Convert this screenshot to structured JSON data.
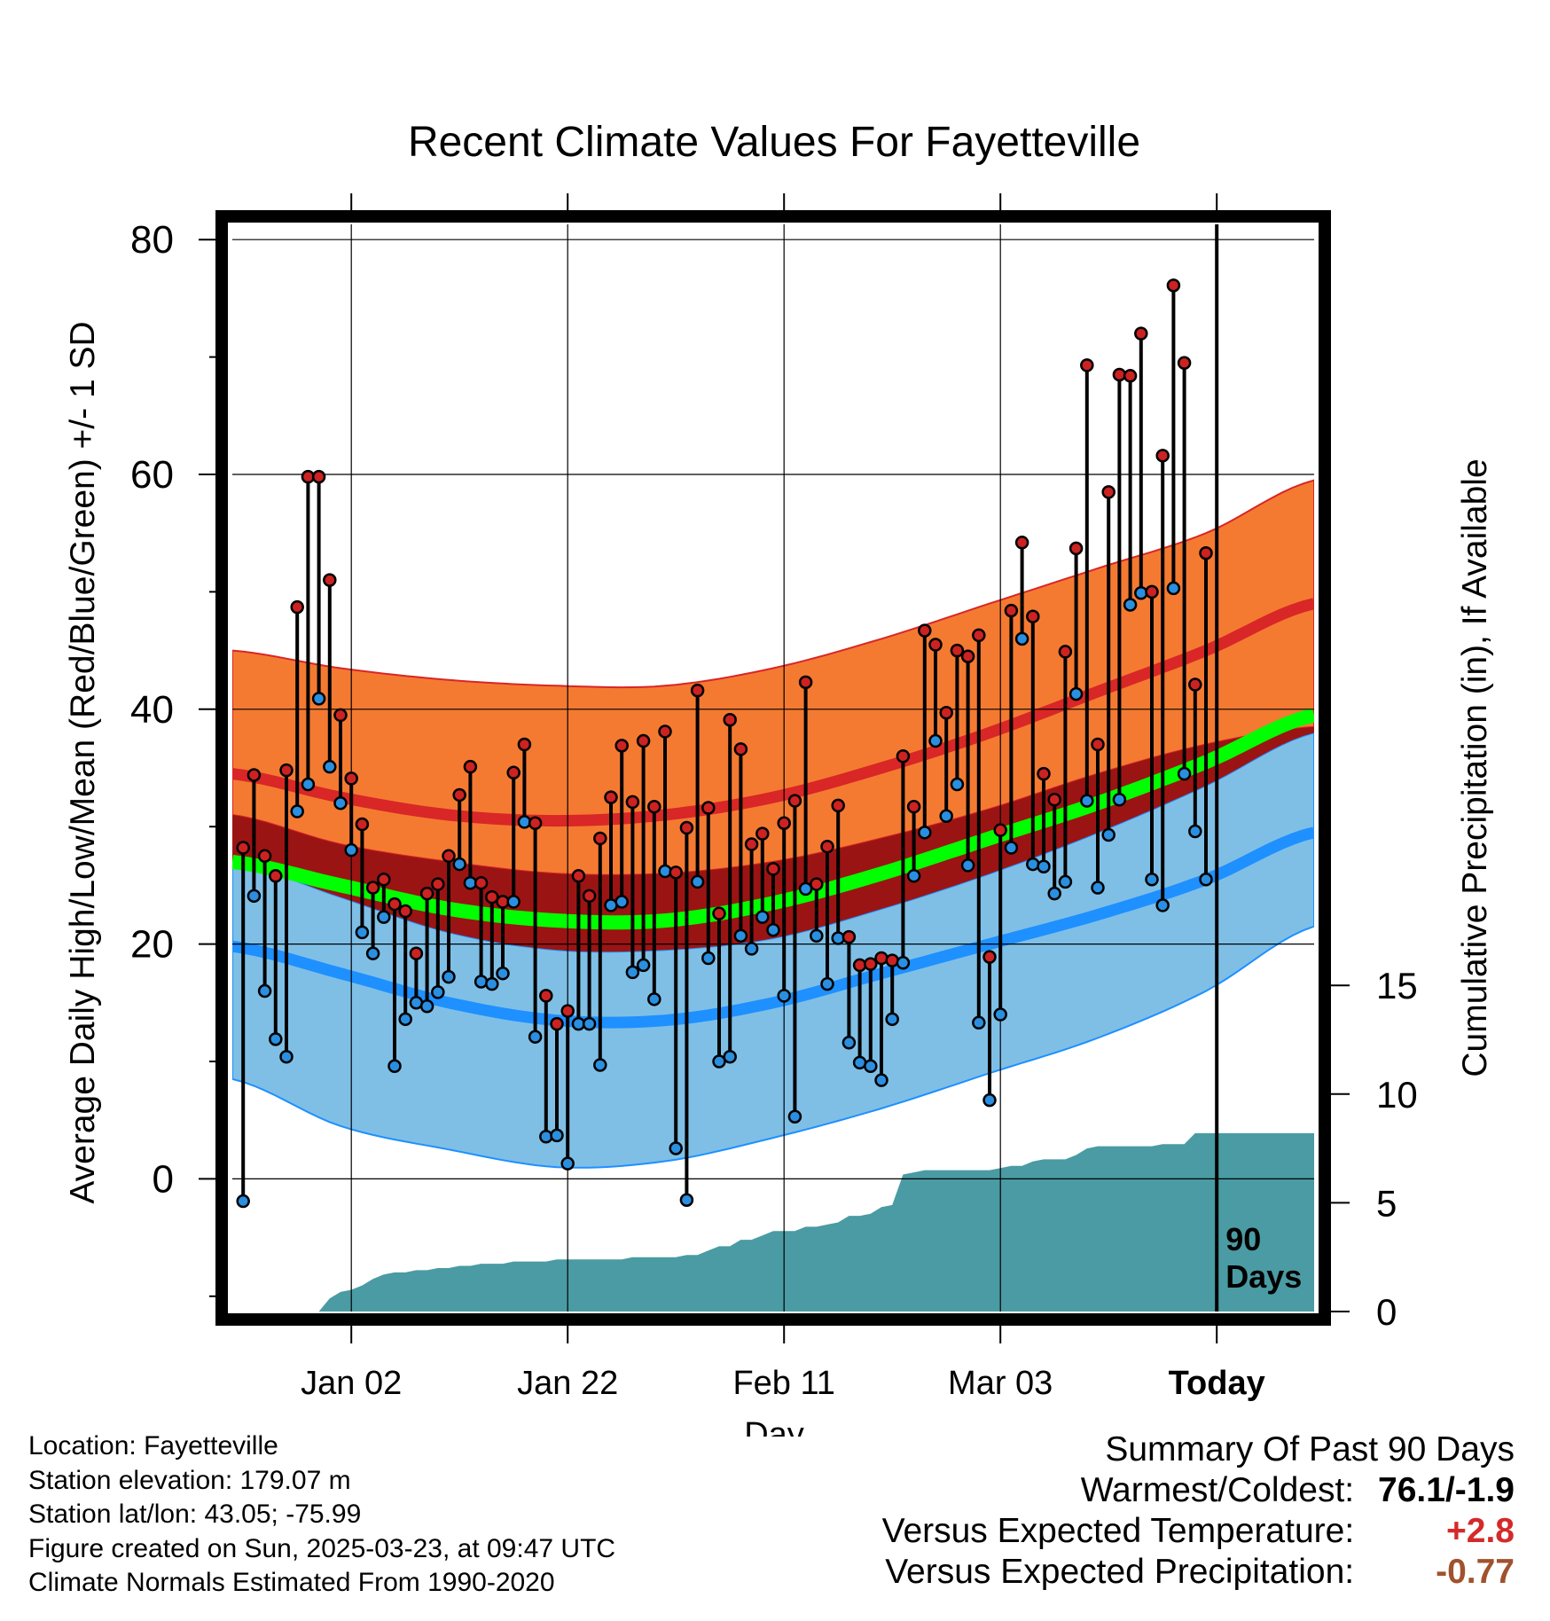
{
  "chart_data": {
    "type": "line",
    "title": "Recent Climate Values For Fayetteville",
    "xlabel": "Day",
    "ylabel": "Average Daily High/Low/Mean (Red/Blue/Green) +/- 1 SD",
    "y2label": "Cumulative Precipitation (in), If Available",
    "x_tick_labels": [
      "Jan 02",
      "Jan 22",
      "Feb 11",
      "Mar 03",
      "Today"
    ],
    "x_tick_days": [
      10,
      30,
      50,
      70,
      90
    ],
    "xlim": [
      -1,
      99
    ],
    "ylim": [
      -11.3,
      81.3
    ],
    "y_ticks": [
      0,
      20,
      40,
      60,
      80
    ],
    "y2_ticks": [
      0,
      5,
      10,
      15
    ],
    "y2lim": [
      0,
      50
    ],
    "grid": true,
    "today_label": "90 Days",
    "normals": {
      "days": [
        -1,
        9,
        19,
        29,
        39,
        49,
        59,
        69,
        79,
        89,
        99
      ],
      "high_mean": [
        34.5,
        32.5,
        31.0,
        30.5,
        31.0,
        32.5,
        35.0,
        38.0,
        41.5,
        45.0,
        49.0
      ],
      "high_upper": [
        45.0,
        43.5,
        42.5,
        42.0,
        42.0,
        43.5,
        46.0,
        49.0,
        52.0,
        55.0,
        59.5
      ],
      "high_lower": [
        31.0,
        28.5,
        27.0,
        26.0,
        26.0,
        27.0,
        29.0,
        31.5,
        34.5,
        37.0,
        38.5
      ],
      "low_mean": [
        19.8,
        17.5,
        15.0,
        13.5,
        13.5,
        15.0,
        17.5,
        20.0,
        22.5,
        25.5,
        29.5
      ],
      "low_upper": [
        27.0,
        24.0,
        21.0,
        19.5,
        19.5,
        20.5,
        23.0,
        26.0,
        29.5,
        33.5,
        38.0
      ],
      "low_lower": [
        8.5,
        4.5,
        2.5,
        1.0,
        1.5,
        3.5,
        6.0,
        9.0,
        12.0,
        16.0,
        21.5
      ],
      "mean_mean": [
        27.0,
        25.0,
        23.0,
        22.0,
        22.0,
        23.5,
        26.0,
        29.0,
        32.0,
        35.5,
        39.5
      ]
    },
    "series": [
      {
        "name": "High",
        "values": [
          28.2,
          34.4,
          27.5,
          25.8,
          34.8,
          48.7,
          59.8,
          59.8,
          51.0,
          39.5,
          34.1,
          30.2,
          24.8,
          25.5,
          23.4,
          22.8,
          19.2,
          24.3,
          25.1,
          27.5,
          32.7,
          35.1,
          25.2,
          24.0,
          23.6,
          34.6,
          37.0,
          30.3,
          15.6,
          13.2,
          14.3,
          25.8,
          24.1,
          29.0,
          32.5,
          36.9,
          32.1,
          37.3,
          31.7,
          38.1,
          26.1,
          29.9,
          41.6,
          31.6,
          22.6,
          39.1,
          36.6,
          28.5,
          29.4,
          26.4,
          30.3,
          32.2,
          42.3,
          25.1,
          28.3,
          31.8,
          20.6,
          18.2,
          18.3,
          18.8,
          18.6,
          36.0,
          31.7,
          46.7,
          45.5,
          39.7,
          45.0,
          44.5,
          46.3,
          18.9,
          29.7,
          48.4,
          54.2,
          47.9,
          34.5,
          32.3,
          44.9,
          53.7,
          69.3,
          37.0,
          58.5,
          68.5,
          68.4,
          72.0,
          50.0,
          61.6,
          76.1,
          69.5,
          42.1,
          53.3
        ]
      },
      {
        "name": "Low",
        "values": [
          -1.9,
          24.1,
          16.0,
          11.9,
          10.4,
          31.3,
          33.6,
          40.9,
          35.1,
          32.0,
          28.0,
          21.0,
          19.2,
          22.3,
          9.6,
          13.6,
          15.0,
          14.7,
          15.9,
          17.2,
          26.8,
          25.2,
          16.8,
          16.6,
          17.5,
          23.6,
          30.4,
          12.1,
          3.6,
          3.7,
          1.3,
          13.2,
          13.2,
          9.7,
          23.3,
          23.6,
          17.6,
          18.2,
          15.3,
          26.2,
          2.6,
          -1.8,
          25.3,
          18.8,
          10.0,
          10.4,
          20.7,
          19.6,
          22.3,
          21.2,
          15.6,
          5.3,
          24.7,
          20.7,
          16.6,
          20.5,
          11.6,
          9.9,
          9.6,
          8.4,
          13.6,
          18.4,
          25.8,
          29.5,
          37.3,
          30.9,
          33.6,
          26.7,
          13.3,
          6.7,
          14.0,
          28.2,
          46.0,
          26.8,
          26.6,
          24.3,
          25.3,
          41.3,
          32.2,
          24.8,
          29.3,
          32.3,
          48.9,
          49.9,
          25.5,
          23.3,
          50.3,
          34.5,
          29.6,
          25.5
        ]
      }
    ],
    "precip_cumulative": {
      "days": [
        7,
        8,
        9,
        10,
        11,
        12,
        13,
        14,
        15,
        16,
        17,
        18,
        19,
        20,
        21,
        22,
        23,
        24,
        25,
        26,
        27,
        28,
        29,
        30,
        31,
        32,
        33,
        34,
        35,
        36,
        37,
        38,
        39,
        40,
        41,
        42,
        43,
        44,
        45,
        46,
        47,
        48,
        49,
        50,
        51,
        52,
        53,
        54,
        55,
        56,
        57,
        58,
        59,
        60,
        61,
        62,
        63,
        64,
        65,
        66,
        67,
        68,
        69,
        70,
        71,
        72,
        73,
        74,
        75,
        76,
        77,
        78,
        79,
        80,
        81,
        82,
        83,
        84,
        85,
        86,
        87,
        88,
        89,
        90,
        99
      ],
      "values": [
        0.0,
        0.6,
        0.9,
        1.0,
        1.2,
        1.5,
        1.7,
        1.8,
        1.8,
        1.9,
        1.9,
        2.0,
        2.0,
        2.1,
        2.1,
        2.2,
        2.2,
        2.2,
        2.3,
        2.3,
        2.3,
        2.3,
        2.4,
        2.4,
        2.4,
        2.4,
        2.4,
        2.4,
        2.4,
        2.5,
        2.5,
        2.5,
        2.5,
        2.5,
        2.6,
        2.6,
        2.8,
        3.0,
        3.0,
        3.3,
        3.3,
        3.5,
        3.7,
        3.7,
        3.7,
        3.9,
        3.9,
        4.0,
        4.1,
        4.4,
        4.4,
        4.5,
        4.8,
        4.9,
        6.3,
        6.4,
        6.5,
        6.5,
        6.5,
        6.5,
        6.5,
        6.5,
        6.5,
        6.6,
        6.7,
        6.7,
        6.9,
        7.0,
        7.0,
        7.0,
        7.2,
        7.5,
        7.6,
        7.6,
        7.6,
        7.6,
        7.6,
        7.6,
        7.7,
        7.7,
        7.7,
        8.2,
        8.2,
        8.2,
        8.2
      ]
    },
    "colors": {
      "high_band": "#f47a32",
      "high_line": "#d92626",
      "low_band": "#7fbfe6",
      "low_line": "#1e90ff",
      "overlap": "#9b1414",
      "mean_line": "#00ff00",
      "precip": "#4a9ba3",
      "high_dot": "#cc2222",
      "low_dot": "#2a8fe0"
    }
  },
  "info": {
    "location": "Location: Fayetteville",
    "elevation": "Station elevation: 179.07 m",
    "latlon": "Station lat/lon: 43.05; -75.99",
    "created": "Figure created on Sun, 2025-03-23, at 09:47 UTC",
    "normals": "Climate Normals Estimated From 1990-2020"
  },
  "summary": {
    "heading": "Summary Of Past 90 Days",
    "warmest_label": "Warmest/Coldest:",
    "warmest_value": "76.1/-1.9",
    "temp_label": "Versus Expected Temperature:",
    "temp_value": "+2.8",
    "temp_color": "#d42a2a",
    "precip_label": "Versus Expected Precipitation:",
    "precip_value": "-0.77",
    "precip_color": "#a0522d"
  }
}
